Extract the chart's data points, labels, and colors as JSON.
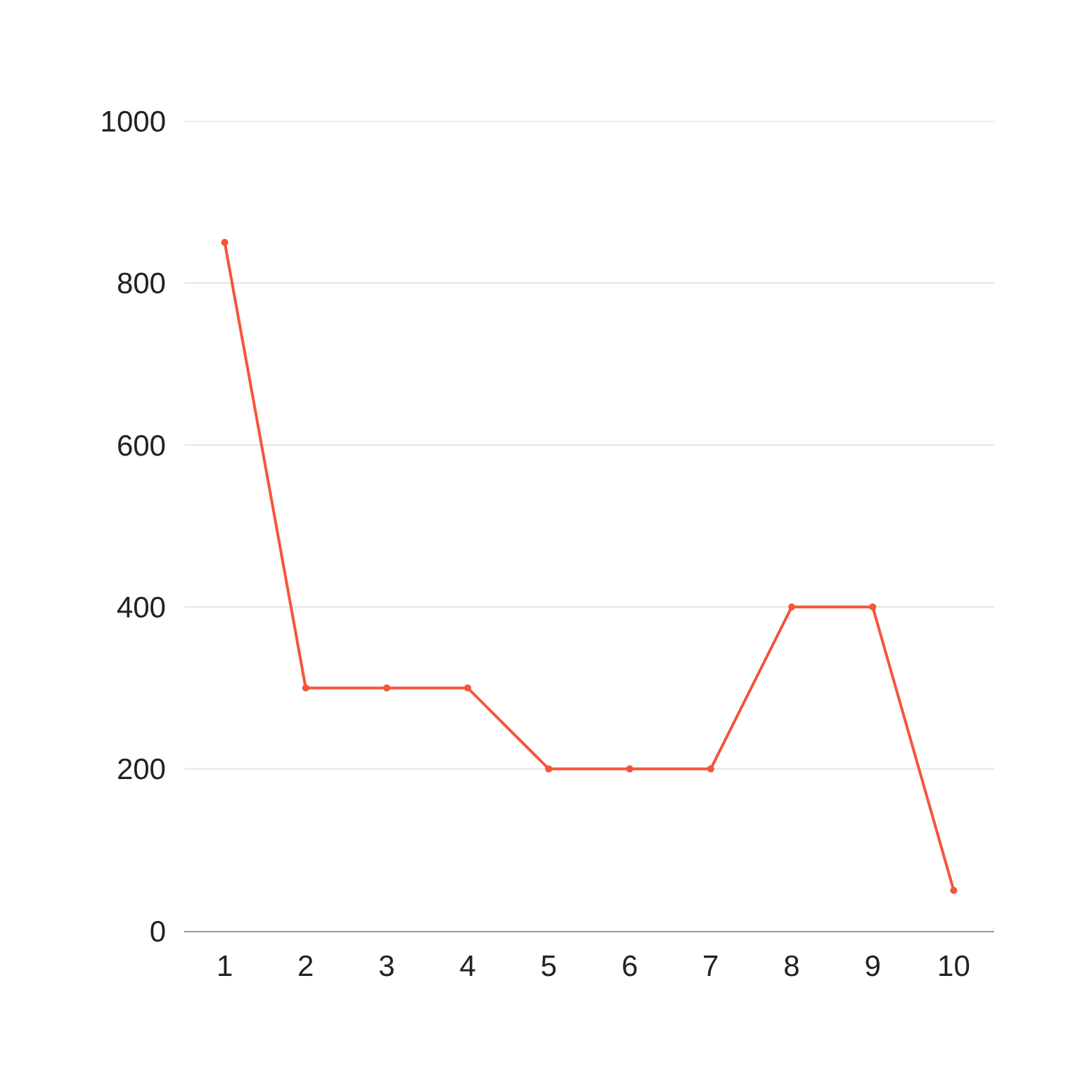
{
  "chart_data": {
    "type": "line",
    "categories": [
      "1",
      "2",
      "3",
      "4",
      "5",
      "6",
      "7",
      "8",
      "9",
      "10"
    ],
    "series": [
      {
        "color": "#f4553b",
        "values": [
          850,
          300,
          300,
          300,
          200,
          200,
          200,
          400,
          400,
          50
        ]
      }
    ],
    "ylim": [
      0,
      1000
    ],
    "yticks": [
      0,
      200,
      400,
      600,
      800,
      1000
    ],
    "grid": "y",
    "marker": "circle",
    "line_style": "solid"
  }
}
